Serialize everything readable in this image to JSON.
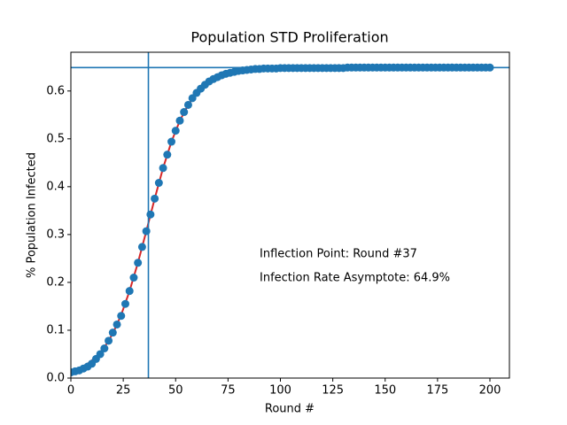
{
  "chart_data": {
    "type": "scatter",
    "title": "Population STD Proliferation",
    "x_label": "Round #",
    "y_label": "% Population Infected",
    "xlim": [
      0,
      209.3
    ],
    "ylim": [
      0,
      0.681
    ],
    "xticks": [
      0,
      25,
      50,
      75,
      100,
      125,
      150,
      175,
      200
    ],
    "yticks": [
      {
        "value": 0,
        "label": "0.0"
      },
      0.1,
      0.2,
      0.3,
      0.4,
      0.5,
      0.6
    ],
    "grid": false,
    "vlines": [
      37
    ],
    "hlines": [
      0.649
    ],
    "line_color": "#1f77b4",
    "annotations": [
      "Inflection Point: Round #37",
      "Infection Rate Asymptote: 64.9%"
    ],
    "series": [
      {
        "type": "line",
        "color": "#d62728",
        "x": [
          0,
          4,
          8,
          12,
          16,
          20,
          24,
          28,
          32,
          36,
          40,
          44,
          48,
          52,
          56,
          60,
          64,
          68,
          72,
          76,
          80,
          84,
          88,
          92,
          96,
          100,
          200
        ],
        "values": [
          0.013,
          0.02,
          0.03,
          0.044,
          0.064,
          0.093,
          0.132,
          0.182,
          0.241,
          0.307,
          0.375,
          0.439,
          0.494,
          0.538,
          0.571,
          0.596,
          0.613,
          0.625,
          0.633,
          0.638,
          0.642,
          0.644,
          0.646,
          0.647,
          0.648,
          0.648,
          0.649
        ]
      },
      {
        "type": "scatter",
        "color": "#1f77b4",
        "x": [
          0,
          2,
          4,
          6,
          8,
          10,
          12,
          14,
          16,
          18,
          20,
          22,
          24,
          26,
          28,
          30,
          32,
          34,
          36,
          38,
          40,
          42,
          44,
          46,
          48,
          50,
          52,
          54,
          56,
          58,
          60,
          62,
          64,
          66,
          68,
          70,
          72,
          74,
          76,
          78,
          80,
          82,
          84,
          86,
          88,
          90,
          92,
          94,
          96,
          98,
          100,
          102,
          104,
          106,
          108,
          110,
          112,
          114,
          116,
          118,
          120,
          122,
          124,
          126,
          128,
          130,
          132,
          134,
          136,
          138,
          140,
          142,
          144,
          146,
          148,
          150,
          152,
          154,
          156,
          158,
          160,
          162,
          164,
          166,
          168,
          170,
          172,
          174,
          176,
          178,
          180,
          182,
          184,
          186,
          188,
          190,
          192,
          194,
          196,
          198,
          200
        ],
        "values": [
          0.012,
          0.014,
          0.016,
          0.02,
          0.024,
          0.03,
          0.04,
          0.05,
          0.062,
          0.078,
          0.095,
          0.112,
          0.13,
          0.155,
          0.182,
          0.21,
          0.241,
          0.274,
          0.307,
          0.342,
          0.375,
          0.408,
          0.439,
          0.467,
          0.494,
          0.517,
          0.538,
          0.556,
          0.571,
          0.585,
          0.596,
          0.605,
          0.613,
          0.62,
          0.625,
          0.629,
          0.633,
          0.636,
          0.638,
          0.64,
          0.642,
          0.643,
          0.644,
          0.645,
          0.646,
          0.646,
          0.647,
          0.647,
          0.647,
          0.647,
          0.648,
          0.648,
          0.648,
          0.648,
          0.648,
          0.648,
          0.648,
          0.648,
          0.648,
          0.648,
          0.648,
          0.648,
          0.648,
          0.648,
          0.648,
          0.648,
          0.649,
          0.649,
          0.649,
          0.649,
          0.649,
          0.649,
          0.649,
          0.649,
          0.649,
          0.649,
          0.649,
          0.649,
          0.649,
          0.649,
          0.649,
          0.649,
          0.649,
          0.649,
          0.649,
          0.649,
          0.649,
          0.649,
          0.649,
          0.649,
          0.649,
          0.649,
          0.649,
          0.649,
          0.649,
          0.649,
          0.649,
          0.649,
          0.649,
          0.649,
          0.649
        ]
      }
    ]
  }
}
